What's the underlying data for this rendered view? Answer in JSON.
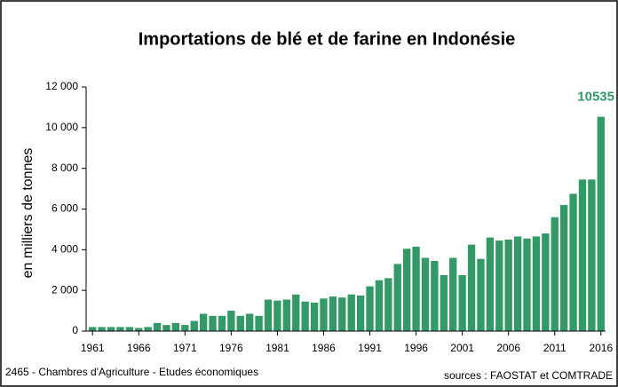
{
  "chart_data": {
    "type": "bar",
    "title": "Importations de blé et de farine en Indonésie",
    "y_label": "en milliers de tonnes",
    "footer_left": "2465 - Chambres d'Agriculture - Etudes économiques",
    "footer_right": "sources : FAOSTAT et COMTRADE",
    "categories": [
      "1961",
      null,
      null,
      null,
      null,
      "1966",
      null,
      null,
      null,
      null,
      "1971",
      null,
      null,
      null,
      null,
      "1976",
      null,
      null,
      null,
      null,
      "1981",
      null,
      null,
      null,
      null,
      "1986",
      null,
      null,
      null,
      null,
      "1991",
      null,
      null,
      null,
      null,
      "1996",
      null,
      null,
      null,
      null,
      "2001",
      null,
      null,
      null,
      null,
      "2006",
      null,
      null,
      null,
      null,
      "2011",
      null,
      null,
      null,
      null,
      "2016"
    ],
    "values": [
      200,
      200,
      200,
      200,
      200,
      150,
      200,
      400,
      300,
      400,
      300,
      500,
      850,
      750,
      750,
      1000,
      750,
      850,
      750,
      1550,
      1500,
      1550,
      1800,
      1450,
      1400,
      1600,
      1700,
      1650,
      1800,
      1750,
      2200,
      2500,
      2600,
      3300,
      4050,
      4150,
      3600,
      3450,
      2750,
      3600,
      2750,
      4250,
      3550,
      4600,
      4450,
      4500,
      4650,
      4550,
      4650,
      4800,
      5600,
      6200,
      6750,
      7450,
      7450,
      10535
    ],
    "color": "#339966",
    "ylim": [
      0,
      12000
    ],
    "yticks": [
      0,
      {
        "value": 2000,
        "label": "2 000"
      },
      {
        "value": 4000,
        "label": "4 000"
      },
      {
        "value": 6000,
        "label": "6 000"
      },
      {
        "value": 8000,
        "label": "8 000"
      },
      {
        "value": 10000,
        "label": "10 000"
      },
      {
        "value": 12000,
        "label": "12 000"
      }
    ],
    "grid": false
  }
}
